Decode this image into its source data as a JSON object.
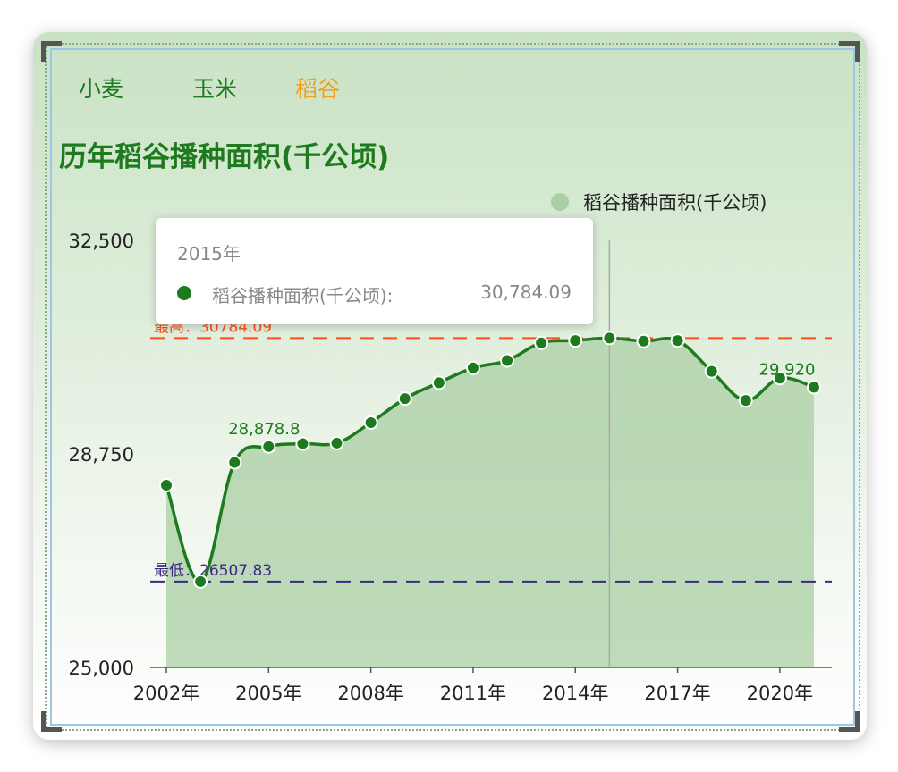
{
  "tabs": [
    {
      "label": "小麦",
      "active": false
    },
    {
      "label": "玉米",
      "active": false
    },
    {
      "label": "稻谷",
      "active": true
    }
  ],
  "colors": {
    "series": "#1e7a1e",
    "area": "#a9cfa3",
    "max_line": "#ff4d1a",
    "min_line": "#3b2a82",
    "active_tab": "#f0a020"
  },
  "tooltip": {
    "title": "2015年",
    "series_name": "稻谷播种面积(千公顷):",
    "value": "30,784.09"
  },
  "chart_data": {
    "type": "area",
    "title": "历年稻谷播种面积(千公顷)",
    "legend": [
      "稻谷播种面积(千公顷)"
    ],
    "legend_position": "top-right",
    "x": [
      2002,
      2003,
      2004,
      2005,
      2006,
      2007,
      2008,
      2009,
      2010,
      2011,
      2012,
      2013,
      2014,
      2015,
      2016,
      2017,
      2018,
      2019,
      2020,
      2021
    ],
    "x_tick_labels": [
      "2002年",
      "2005年",
      "2008年",
      "2011年",
      "2014年",
      "2017年",
      "2020年"
    ],
    "x_tick_years": [
      2002,
      2005,
      2008,
      2011,
      2014,
      2017,
      2020
    ],
    "series": [
      {
        "name": "稻谷播种面积(千公顷)",
        "values": [
          28200,
          26507.83,
          28600,
          28878.8,
          28930,
          28940,
          29300,
          29720,
          30000,
          30260,
          30390,
          30700,
          30740,
          30784.09,
          30730,
          30740,
          30200,
          29690,
          30080,
          29920
        ]
      }
    ],
    "ylim": [
      25000,
      32500
    ],
    "y_ticks": [
      25000,
      28750,
      32500
    ],
    "y_tick_labels": [
      "25,000",
      "28,750",
      "32,500"
    ],
    "data_labels": [
      {
        "x": 2005,
        "text": "28,878.8"
      },
      {
        "x": 2021,
        "text": "29,920"
      }
    ],
    "mark_lines": [
      {
        "type": "max",
        "value": 30784.09,
        "label": "最高：30784.09"
      },
      {
        "type": "min",
        "value": 26507.83,
        "label": "最低：26507.83"
      }
    ],
    "highlight_x": 2015,
    "grid": false
  }
}
